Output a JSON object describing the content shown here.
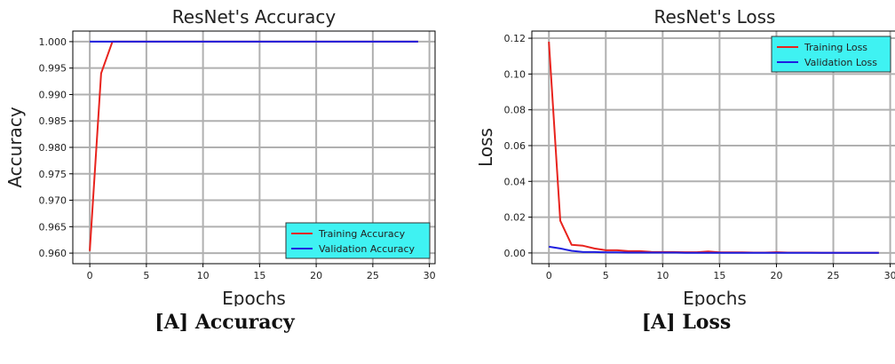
{
  "captions": [
    "[A] Accuracy",
    "[A] Loss"
  ],
  "colors": {
    "training": "#e8231d",
    "validation": "#1f1fe0",
    "legend_bg": "#3ff2f2",
    "grid": "#b0b0b0"
  },
  "chart_data": [
    {
      "type": "line",
      "title": "ResNet's Accuracy",
      "xlabel": "Epochs",
      "ylabel": "Accuracy",
      "xlim": [
        -1.5,
        30.5
      ],
      "ylim": [
        0.958,
        1.002
      ],
      "xticks": [
        0,
        5,
        10,
        15,
        20,
        25,
        30
      ],
      "xtick_labels": [
        "0",
        "5",
        "10",
        "15",
        "20",
        "25",
        "30"
      ],
      "yticks": [
        0.96,
        0.965,
        0.97,
        0.975,
        0.98,
        0.985,
        0.99,
        0.995,
        1.0
      ],
      "ytick_labels": [
        "0.960",
        "0.965",
        "0.970",
        "0.975",
        "0.980",
        "0.985",
        "0.990",
        "0.995",
        "1.000"
      ],
      "grid": true,
      "legend_position": "bottom-right",
      "series": [
        {
          "name": "Training Accuracy",
          "color_key": "training",
          "x": [
            0,
            1,
            2,
            3,
            4,
            5,
            6,
            7,
            8,
            9,
            10,
            11,
            12,
            13,
            14,
            15,
            16,
            17,
            18,
            19,
            20,
            21,
            22,
            23,
            24,
            25,
            26,
            27,
            28,
            29
          ],
          "y": [
            0.9604,
            0.994,
            1.0,
            1.0,
            1.0,
            1.0,
            1.0,
            1.0,
            1.0,
            1.0,
            1.0,
            1.0,
            1.0,
            1.0,
            1.0,
            1.0,
            1.0,
            1.0,
            1.0,
            1.0,
            1.0,
            1.0,
            1.0,
            1.0,
            1.0,
            1.0,
            1.0,
            1.0,
            1.0,
            1.0
          ]
        },
        {
          "name": "Validation Accuracy",
          "color_key": "validation",
          "x": [
            0,
            1,
            2,
            3,
            4,
            5,
            6,
            7,
            8,
            9,
            10,
            11,
            12,
            13,
            14,
            15,
            16,
            17,
            18,
            19,
            20,
            21,
            22,
            23,
            24,
            25,
            26,
            27,
            28,
            29
          ],
          "y": [
            1.0,
            1.0,
            1.0,
            1.0,
            1.0,
            1.0,
            1.0,
            1.0,
            1.0,
            1.0,
            1.0,
            1.0,
            1.0,
            1.0,
            1.0,
            1.0,
            1.0,
            1.0,
            1.0,
            1.0,
            1.0,
            1.0,
            1.0,
            1.0,
            1.0,
            1.0,
            1.0,
            1.0,
            1.0,
            1.0
          ]
        }
      ]
    },
    {
      "type": "line",
      "title": "ResNet's Loss",
      "xlabel": "Epochs",
      "ylabel": "Loss",
      "xlim": [
        -1.5,
        30.5
      ],
      "ylim": [
        -0.006,
        0.124
      ],
      "xticks": [
        0,
        5,
        10,
        15,
        20,
        25,
        30
      ],
      "xtick_labels": [
        "0",
        "5",
        "10",
        "15",
        "20",
        "25",
        "30"
      ],
      "yticks": [
        0.0,
        0.02,
        0.04,
        0.06,
        0.08,
        0.1,
        0.12
      ],
      "ytick_labels": [
        "0.00",
        "0.02",
        "0.04",
        "0.06",
        "0.08",
        "0.10",
        "0.12"
      ],
      "grid": true,
      "legend_position": "top-right",
      "series": [
        {
          "name": "Training Loss",
          "color_key": "training",
          "x": [
            0,
            1,
            2,
            3,
            4,
            5,
            6,
            7,
            8,
            9,
            10,
            11,
            12,
            13,
            14,
            15,
            16,
            17,
            18,
            19,
            20,
            21,
            22,
            23,
            24,
            25,
            26,
            27,
            28,
            29
          ],
          "y": [
            0.118,
            0.018,
            0.0045,
            0.004,
            0.0025,
            0.0015,
            0.0015,
            0.001,
            0.001,
            0.0006,
            0.0005,
            0.0005,
            0.0004,
            0.0004,
            0.0008,
            0.0003,
            0.0003,
            0.0003,
            0.0002,
            0.0002,
            0.0004,
            0.0002,
            0.0002,
            0.0002,
            0.0001,
            0.0001,
            0.0001,
            0.0001,
            0.0001,
            0.0001
          ]
        },
        {
          "name": "Validation Loss",
          "color_key": "validation",
          "x": [
            0,
            1,
            2,
            3,
            4,
            5,
            6,
            7,
            8,
            9,
            10,
            11,
            12,
            13,
            14,
            15,
            16,
            17,
            18,
            19,
            20,
            21,
            22,
            23,
            24,
            25,
            26,
            27,
            28,
            29
          ],
          "y": [
            0.0035,
            0.0025,
            0.0012,
            0.0005,
            0.0005,
            0.0003,
            0.0003,
            0.0002,
            0.0002,
            0.0002,
            0.0002,
            0.0002,
            0.0001,
            0.0001,
            0.0001,
            0.0001,
            0.0001,
            0.0001,
            0.0001,
            0.0001,
            0.0001,
            0.0001,
            0.0001,
            0.0001,
            0.0001,
            0.0001,
            0.0001,
            0.0001,
            0.0001,
            0.0001
          ]
        }
      ]
    }
  ]
}
